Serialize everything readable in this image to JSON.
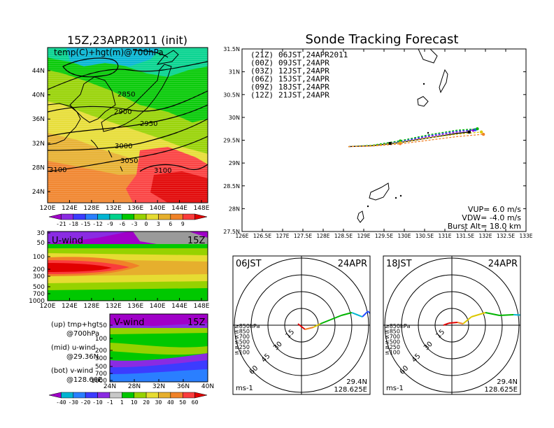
{
  "left_map": {
    "title": "15Z,23APR2011 (init)",
    "label": "temp(C)+hgt(m)@700hPa",
    "lat_ticks": [
      "44N",
      "40N",
      "36N",
      "32N",
      "28N",
      "24N"
    ],
    "lon_ticks": [
      "120E",
      "124E",
      "128E",
      "132E",
      "136E",
      "140E",
      "144E",
      "148E"
    ],
    "contour_labels": [
      "2850",
      "2900",
      "2950",
      "3000",
      "3050",
      "3100",
      "3100"
    ],
    "colorbar_ticks": [
      "-21",
      "-18",
      "-15",
      "-12",
      "-9",
      "-6",
      "-3",
      "0",
      "3",
      "6",
      "9"
    ],
    "colorbar_colors": [
      "#a000c8",
      "#8a2be2",
      "#3c3cff",
      "#2a7fff",
      "#00b4d2",
      "#00d28c",
      "#00c800",
      "#96d200",
      "#e6dc32",
      "#e6af2d",
      "#f08228",
      "#fa3c3c",
      "#e10000"
    ]
  },
  "u_panel": {
    "label": "U-wind",
    "time": "15Z",
    "p_ticks": [
      "30",
      "50",
      "100",
      "200",
      "300",
      "500",
      "700",
      "1000"
    ],
    "lon_ticks": [
      "120E",
      "124E",
      "128E",
      "132E",
      "136E",
      "140E",
      "144E",
      "148E"
    ]
  },
  "v_panel": {
    "label": "V-wind",
    "time": "15Z",
    "p_ticks": [
      "50",
      "100",
      "200",
      "300",
      "500",
      "700",
      "1000"
    ],
    "lat_ticks": [
      "24N",
      "28N",
      "32N",
      "36N",
      "40N"
    ],
    "colorbar_ticks": [
      "-40",
      "-30",
      "-20",
      "-10",
      "-1",
      "1",
      "10",
      "20",
      "30",
      "40",
      "50",
      "60"
    ],
    "colorbar_colors": [
      "#a000c8",
      "#00b4d2",
      "#2a7fff",
      "#3c3cff",
      "#8a2be2",
      "#c8c8c8",
      "#00c800",
      "#96d200",
      "#e6dc32",
      "#e6af2d",
      "#f08228",
      "#fa3c3c",
      "#e10000"
    ]
  },
  "legend_text": {
    "up": [
      "(up) tmp+hgt",
      "@700hPa"
    ],
    "mid": [
      "(mid) u-wind",
      "@29.36N"
    ],
    "bot": [
      "(bot) v-wind",
      "@128.66E"
    ]
  },
  "tracking": {
    "title": "Sonde Tracking Forecast",
    "lat_ticks": [
      "31.5N",
      "31N",
      "30.5N",
      "30N",
      "29.5N",
      "29N",
      "28.5N",
      "28N",
      "27.5N"
    ],
    "lon_ticks": [
      "126E",
      "126.5E",
      "127E",
      "127.5E",
      "128E",
      "128.5E",
      "129E",
      "129.5E",
      "130E",
      "130.5E",
      "131E",
      "131.5E",
      "132E",
      "132.5E",
      "133E"
    ],
    "legend": [
      {
        "z": "(21Z)",
        "jst": "06JST,24APR2011",
        "color": "#000000"
      },
      {
        "z": "(00Z)",
        "jst": "09JST,24APR",
        "color": "#a000c8"
      },
      {
        "z": "(03Z)",
        "jst": "12JST,24APR",
        "color": "#2850ff"
      },
      {
        "z": "(06Z)",
        "jst": "15JST,24APR",
        "color": "#00b400"
      },
      {
        "z": "(09Z)",
        "jst": "18JST,24APR",
        "color": "#dcc800"
      },
      {
        "z": "(12Z)",
        "jst": "21JST,24APR",
        "color": "#f08228"
      }
    ],
    "params": [
      "VUP= 6.0 m/s",
      "VDW= -4.0 m/s",
      "Burst Alt= 18.0 km"
    ]
  },
  "hodo_left": {
    "time": "06JST",
    "date": "24APR",
    "ring_labels": [
      "15",
      "30",
      "45",
      "60"
    ],
    "levels": [
      "≥850hPa",
      "≤850",
      "≤700",
      "≤500",
      "≤250",
      "≤100"
    ],
    "level_colors": [
      "#e10000",
      "#f08228",
      "#dcc800",
      "#00b400",
      "#00b4d2",
      "#2850ff"
    ],
    "unit": "ms-1",
    "lat": "29.4N",
    "lon": "128.625E"
  },
  "hodo_right": {
    "time": "18JST",
    "date": "24APR",
    "ring_labels": [
      "15",
      "30",
      "45",
      "60"
    ],
    "levels": [
      "≥850hPa",
      "≤850",
      "≤700",
      "≤500",
      "≤250",
      "≤100"
    ],
    "level_colors": [
      "#e10000",
      "#f08228",
      "#dcc800",
      "#00b400",
      "#00b4d2",
      "#2850ff"
    ],
    "unit": "ms-1",
    "lat": "29.4N",
    "lon": "128.625E"
  },
  "chart_data": [
    {
      "type": "heatmap",
      "title": "15Z,23APR2011 (init)",
      "subtitle": "temp(C)+hgt(m)@700hPa",
      "xlim": [
        120,
        149
      ],
      "ylim": [
        22,
        48
      ],
      "colorbar": [
        -21,
        -18,
        -15,
        -12,
        -9,
        -6,
        -3,
        0,
        3,
        6,
        9
      ],
      "contour_levels": [
        2850,
        2900,
        2950,
        3000,
        3050,
        3100
      ]
    },
    {
      "type": "heatmap",
      "title": "U-wind",
      "xlim": [
        120,
        149
      ],
      "ylim": [
        1000,
        30
      ]
    },
    {
      "type": "heatmap",
      "title": "V-wind",
      "xlim": [
        24,
        40
      ],
      "ylim": [
        1000,
        30
      ],
      "colorbar": [
        -40,
        -30,
        -20,
        -10,
        -1,
        1,
        10,
        20,
        30,
        40,
        50,
        60
      ]
    },
    {
      "type": "line",
      "title": "Sonde Tracking Forecast",
      "xlim": [
        126,
        133
      ],
      "ylim": [
        27.5,
        31.5
      ],
      "series": [
        {
          "name": "06JST,24APR2011",
          "x": [
            128.62,
            129.2,
            129.9,
            130.6,
            131.3,
            131.6
          ],
          "y": [
            29.36,
            29.38,
            29.45,
            29.55,
            29.65,
            29.68
          ]
        },
        {
          "name": "09JST,24APR",
          "x": [
            128.62,
            129.2,
            129.9,
            130.6,
            131.3,
            131.7
          ],
          "y": [
            29.36,
            29.38,
            29.46,
            29.58,
            29.68,
            29.72
          ]
        },
        {
          "name": "12JST,24APR",
          "x": [
            128.62,
            129.2,
            129.9,
            130.6,
            131.3,
            131.75
          ],
          "y": [
            29.36,
            29.38,
            29.47,
            29.6,
            29.7,
            29.73
          ]
        },
        {
          "name": "15JST,24APR",
          "x": [
            128.62,
            129.2,
            129.9,
            130.6,
            131.3,
            131.8
          ],
          "y": [
            29.36,
            29.39,
            29.49,
            29.62,
            29.72,
            29.75
          ]
        },
        {
          "name": "18JST,24APR",
          "x": [
            128.62,
            129.2,
            129.9,
            130.6,
            131.3,
            131.9
          ],
          "y": [
            29.36,
            29.38,
            29.45,
            29.55,
            29.63,
            29.68
          ]
        },
        {
          "name": "21JST,24APR",
          "x": [
            128.62,
            129.2,
            129.9,
            130.6,
            131.3,
            131.95
          ],
          "y": [
            29.36,
            29.37,
            29.42,
            29.5,
            29.58,
            29.63
          ]
        }
      ]
    }
  ]
}
